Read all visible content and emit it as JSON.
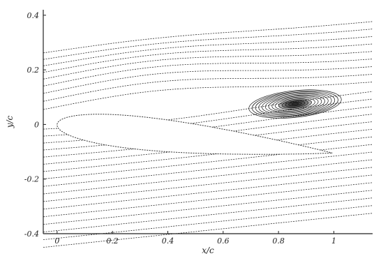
{
  "chart_data": {
    "type": "streamline",
    "xlabel": "x/c",
    "ylabel": "y/c",
    "xlim": [
      -0.05,
      1.14
    ],
    "ylim": [
      -0.4,
      0.42
    ],
    "x_ticks": [
      {
        "value": 0,
        "label": "0"
      },
      {
        "value": 0.2,
        "label": "0.2"
      },
      {
        "value": 0.4,
        "label": "0.4"
      },
      {
        "value": 0.6,
        "label": "0.6"
      },
      {
        "value": 0.8,
        "label": "0.8"
      },
      {
        "value": 1,
        "label": "1"
      }
    ],
    "y_ticks": [
      {
        "value": 0.4,
        "label": "0.4"
      },
      {
        "value": 0.2,
        "label": "0.2"
      },
      {
        "value": 0,
        "label": "0"
      },
      {
        "value": -0.2,
        "label": "-0.2"
      },
      {
        "value": -0.4,
        "label": "-0.4"
      }
    ],
    "angle_of_attack_deg": 6,
    "airfoil_thickness": 0.12,
    "grid": false,
    "colors": {
      "lines": "#2a2a2a",
      "vortex": "#151515",
      "axes": "#222222"
    }
  }
}
